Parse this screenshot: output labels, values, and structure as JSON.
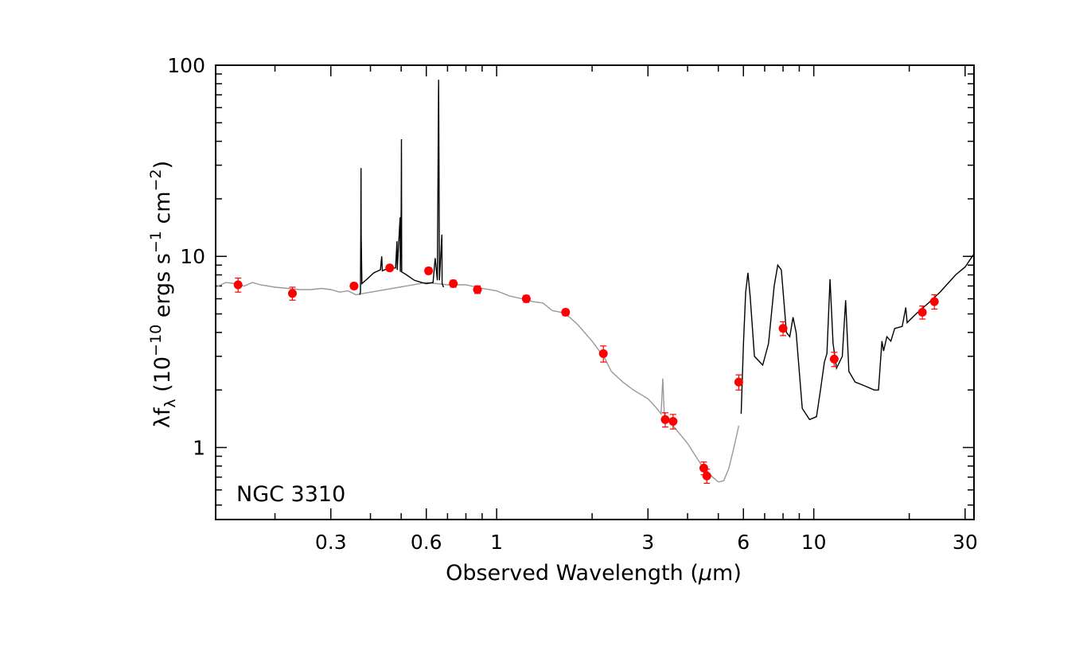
{
  "chart_data": {
    "type": "scatter",
    "panel_label": "NGC 3310",
    "xlabel_text": "Observed Wavelength (",
    "xlabel_mu": "μ",
    "xlabel_unit": "m)",
    "ylabel_main": "λf",
    "ylabel_sub": "λ",
    "ylabel_mid1": " (10",
    "ylabel_exp1": "−10",
    "ylabel_mid2": " ergs s",
    "ylabel_exp2": "−1",
    "ylabel_mid3": " cm",
    "ylabel_exp3": "−2",
    "ylabel_end": ")",
    "x_scale": "log",
    "y_scale": "log",
    "xlim": [
      0.13,
      32
    ],
    "ylim": [
      0.42,
      100
    ],
    "x_ticks": [
      {
        "value": 0.3,
        "label": "0.3"
      },
      {
        "value": 0.6,
        "label": "0.6"
      },
      {
        "value": 1,
        "label": "1"
      },
      {
        "value": 3,
        "label": "3"
      },
      {
        "value": 6,
        "label": "6"
      },
      {
        "value": 10,
        "label": "10"
      },
      {
        "value": 30,
        "label": "30"
      }
    ],
    "y_ticks": [
      {
        "value": 1,
        "label": "1"
      },
      {
        "value": 10,
        "label": "10"
      },
      {
        "value": 100,
        "label": "100"
      }
    ],
    "grid": false,
    "colors": {
      "points": "#ff0000",
      "model": "#999999",
      "observed": "#000000"
    },
    "photometry": [
      {
        "x": 0.153,
        "y": 7.1,
        "err": 0.6
      },
      {
        "x": 0.227,
        "y": 6.4,
        "err": 0.5
      },
      {
        "x": 0.355,
        "y": 7.0,
        "err": 0.25
      },
      {
        "x": 0.46,
        "y": 8.7,
        "err": 0.3
      },
      {
        "x": 0.61,
        "y": 8.4,
        "err": 0.3
      },
      {
        "x": 0.73,
        "y": 7.2,
        "err": 0.3
      },
      {
        "x": 0.87,
        "y": 6.7,
        "err": 0.3
      },
      {
        "x": 1.24,
        "y": 6.0,
        "err": 0.25
      },
      {
        "x": 1.65,
        "y": 5.1,
        "err": 0.2
      },
      {
        "x": 2.17,
        "y": 3.1,
        "err": 0.3
      },
      {
        "x": 3.4,
        "y": 1.4,
        "err": 0.12
      },
      {
        "x": 3.6,
        "y": 1.37,
        "err": 0.12
      },
      {
        "x": 4.5,
        "y": 0.78,
        "err": 0.06
      },
      {
        "x": 4.6,
        "y": 0.71,
        "err": 0.06
      },
      {
        "x": 5.8,
        "y": 2.2,
        "err": 0.2
      },
      {
        "x": 8.0,
        "y": 4.2,
        "err": 0.35
      },
      {
        "x": 11.6,
        "y": 2.9,
        "err": 0.25
      },
      {
        "x": 22,
        "y": 5.1,
        "err": 0.4
      },
      {
        "x": 24,
        "y": 5.8,
        "err": 0.5
      }
    ],
    "model_sed": [
      [
        0.13,
        6.9
      ],
      [
        0.14,
        7.3
      ],
      [
        0.15,
        7.2
      ],
      [
        0.16,
        7.0
      ],
      [
        0.17,
        7.3
      ],
      [
        0.18,
        7.1
      ],
      [
        0.19,
        7.0
      ],
      [
        0.2,
        6.9
      ],
      [
        0.22,
        6.8
      ],
      [
        0.24,
        6.7
      ],
      [
        0.26,
        6.7
      ],
      [
        0.28,
        6.8
      ],
      [
        0.3,
        6.7
      ],
      [
        0.32,
        6.5
      ],
      [
        0.34,
        6.6
      ],
      [
        0.36,
        6.3
      ],
      [
        0.38,
        6.4
      ],
      [
        0.6,
        7.3
      ],
      [
        0.7,
        7.1
      ],
      [
        0.8,
        7.1
      ],
      [
        0.9,
        6.8
      ],
      [
        1.0,
        6.6
      ],
      [
        1.1,
        6.2
      ],
      [
        1.2,
        6.0
      ],
      [
        1.3,
        5.8
      ],
      [
        1.4,
        5.7
      ],
      [
        1.5,
        5.2
      ],
      [
        1.6,
        5.1
      ],
      [
        1.7,
        4.8
      ],
      [
        1.8,
        4.4
      ],
      [
        2.0,
        3.6
      ],
      [
        2.2,
        2.9
      ],
      [
        2.3,
        2.5
      ],
      [
        2.5,
        2.2
      ],
      [
        2.7,
        2.0
      ],
      [
        3.0,
        1.8
      ],
      [
        3.2,
        1.6
      ],
      [
        3.3,
        1.5
      ],
      [
        3.34,
        2.3
      ],
      [
        3.38,
        1.45
      ],
      [
        3.6,
        1.3
      ],
      [
        4.0,
        1.05
      ],
      [
        4.4,
        0.82
      ],
      [
        4.8,
        0.7
      ],
      [
        5.0,
        0.66
      ],
      [
        5.2,
        0.67
      ],
      [
        5.4,
        0.78
      ],
      [
        5.6,
        1.0
      ],
      [
        5.8,
        1.3
      ]
    ],
    "optical_spectrum": [
      [
        0.37,
        6.3
      ],
      [
        0.372,
        6.5
      ],
      [
        0.373,
        13
      ],
      [
        0.3735,
        29
      ],
      [
        0.374,
        13
      ],
      [
        0.376,
        7.2
      ],
      [
        0.39,
        7.6
      ],
      [
        0.41,
        8.2
      ],
      [
        0.43,
        8.5
      ],
      [
        0.434,
        10
      ],
      [
        0.436,
        8.4
      ],
      [
        0.45,
        8.6
      ],
      [
        0.48,
        8.7
      ],
      [
        0.485,
        12
      ],
      [
        0.486,
        8.5
      ],
      [
        0.496,
        16
      ],
      [
        0.497,
        8.3
      ],
      [
        0.5,
        18
      ],
      [
        0.501,
        41
      ],
      [
        0.502,
        8.3
      ],
      [
        0.52,
        8.0
      ],
      [
        0.55,
        7.5
      ],
      [
        0.58,
        7.3
      ],
      [
        0.6,
        7.2
      ],
      [
        0.63,
        7.3
      ],
      [
        0.64,
        9.8
      ],
      [
        0.65,
        7.5
      ],
      [
        0.656,
        84
      ],
      [
        0.658,
        30
      ],
      [
        0.66,
        7.5
      ],
      [
        0.672,
        13
      ],
      [
        0.673,
        7.2
      ],
      [
        0.68,
        6.9
      ]
    ],
    "ir_spectrum": [
      [
        5.9,
        1.5
      ],
      [
        6.0,
        3.5
      ],
      [
        6.1,
        6.5
      ],
      [
        6.2,
        8.2
      ],
      [
        6.3,
        6.2
      ],
      [
        6.5,
        3.0
      ],
      [
        6.9,
        2.7
      ],
      [
        7.2,
        3.5
      ],
      [
        7.5,
        7.0
      ],
      [
        7.7,
        9.0
      ],
      [
        7.9,
        8.5
      ],
      [
        8.2,
        4.0
      ],
      [
        8.4,
        3.8
      ],
      [
        8.6,
        4.8
      ],
      [
        8.8,
        4.0
      ],
      [
        9.2,
        1.6
      ],
      [
        9.7,
        1.4
      ],
      [
        10.2,
        1.45
      ],
      [
        10.5,
        2.0
      ],
      [
        10.8,
        2.8
      ],
      [
        11.0,
        3.1
      ],
      [
        11.25,
        7.6
      ],
      [
        11.5,
        3.5
      ],
      [
        11.8,
        2.6
      ],
      [
        12.3,
        3.0
      ],
      [
        12.6,
        5.9
      ],
      [
        12.9,
        2.5
      ],
      [
        13.5,
        2.2
      ],
      [
        14.5,
        2.1
      ],
      [
        15.5,
        2.0
      ],
      [
        16.0,
        2.0
      ],
      [
        16.4,
        3.6
      ],
      [
        16.6,
        3.2
      ],
      [
        17.0,
        3.8
      ],
      [
        17.5,
        3.6
      ],
      [
        18.0,
        4.2
      ],
      [
        19.0,
        4.3
      ],
      [
        19.5,
        5.4
      ],
      [
        19.7,
        4.5
      ],
      [
        21,
        5.0
      ],
      [
        23,
        5.7
      ],
      [
        25,
        6.5
      ],
      [
        28,
        8.0
      ],
      [
        30,
        8.8
      ],
      [
        32,
        10.3
      ]
    ]
  }
}
